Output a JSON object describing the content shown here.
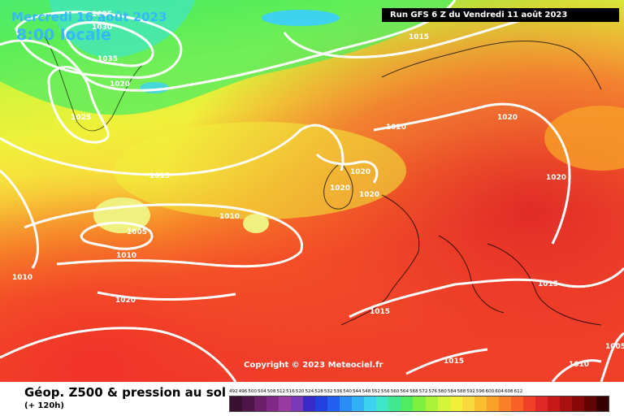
{
  "header": {
    "date_line": "Mercredi 16 août 2023",
    "time_line": "8:00 locale",
    "run_info": "Run GFS 6 Z du Vendredi 11 août 2023"
  },
  "map": {
    "copyright": "Copyright © 2023 Meteociel.fr",
    "isobar_labels": [
      "1025",
      "1030",
      "1035",
      "1020",
      "1025",
      "1015",
      "1015",
      "1010",
      "1005",
      "1010",
      "1010",
      "1020",
      "1020",
      "1020",
      "1020",
      "1020",
      "1020",
      "1015",
      "1015",
      "1020",
      "1015",
      "1010",
      "1005"
    ],
    "colors": {
      "isobar": "#ffffff",
      "text_overlay": "#36b8ff",
      "run_box": "#000000"
    }
  },
  "footer": {
    "title": "Géop. Z500 & pression au sol",
    "subtitle": "(+ 120h)",
    "scale_labels": [
      "492",
      "496",
      "500",
      "504",
      "508",
      "512",
      "516",
      "520",
      "524",
      "528",
      "532",
      "536",
      "540",
      "544",
      "548",
      "552",
      "556",
      "560",
      "564",
      "568",
      "572",
      "576",
      "580",
      "584",
      "588",
      "592",
      "596",
      "600",
      "604",
      "608",
      "612"
    ],
    "scale_colors": [
      "#3a1030",
      "#501548",
      "#6a2068",
      "#802a86",
      "#9a3aa2",
      "#7a3ab8",
      "#3a2ac8",
      "#2040e0",
      "#2060f0",
      "#2a8cf5",
      "#32b0f5",
      "#3ed2f0",
      "#40e6c8",
      "#40e890",
      "#50ec60",
      "#7ef040",
      "#aaf23a",
      "#d2f53a",
      "#f0f03a",
      "#f8d83a",
      "#f8be30",
      "#f8a028",
      "#f88028",
      "#f86028",
      "#f04028",
      "#e02828",
      "#c81818",
      "#a81010",
      "#880808",
      "#600404",
      "#380000"
    ]
  }
}
